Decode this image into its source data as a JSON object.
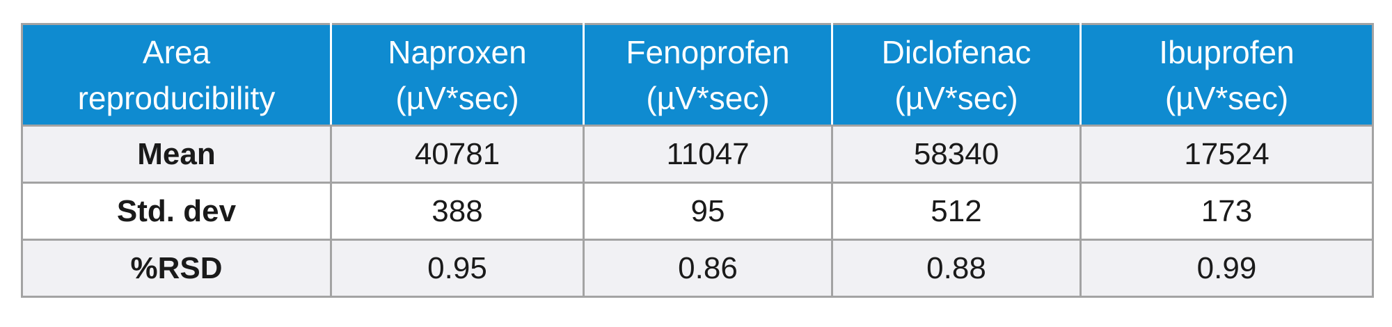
{
  "table": {
    "headers": [
      {
        "line1": "Area",
        "line2": "reproducibility"
      },
      {
        "line1": "Naproxen",
        "line2": "(µV*sec)"
      },
      {
        "line1": "Fenoprofen",
        "line2": "(µV*sec)"
      },
      {
        "line1": "Diclofenac",
        "line2": "(µV*sec)"
      },
      {
        "line1": "Ibuprofen",
        "line2": "(µV*sec)"
      }
    ],
    "rows": [
      {
        "label": "Mean",
        "values": [
          "40781",
          "11047",
          "58340",
          "17524"
        ]
      },
      {
        "label": "Std. dev",
        "values": [
          "388",
          "95",
          "512",
          "173"
        ]
      },
      {
        "label": "%RSD",
        "values": [
          "0.95",
          "0.86",
          "0.88",
          "0.99"
        ]
      }
    ]
  },
  "colors": {
    "header_bg": "#0f8bd0",
    "header_text": "#ffffff",
    "row_shade": "#f1f1f4",
    "border": "#a3a3a3"
  }
}
